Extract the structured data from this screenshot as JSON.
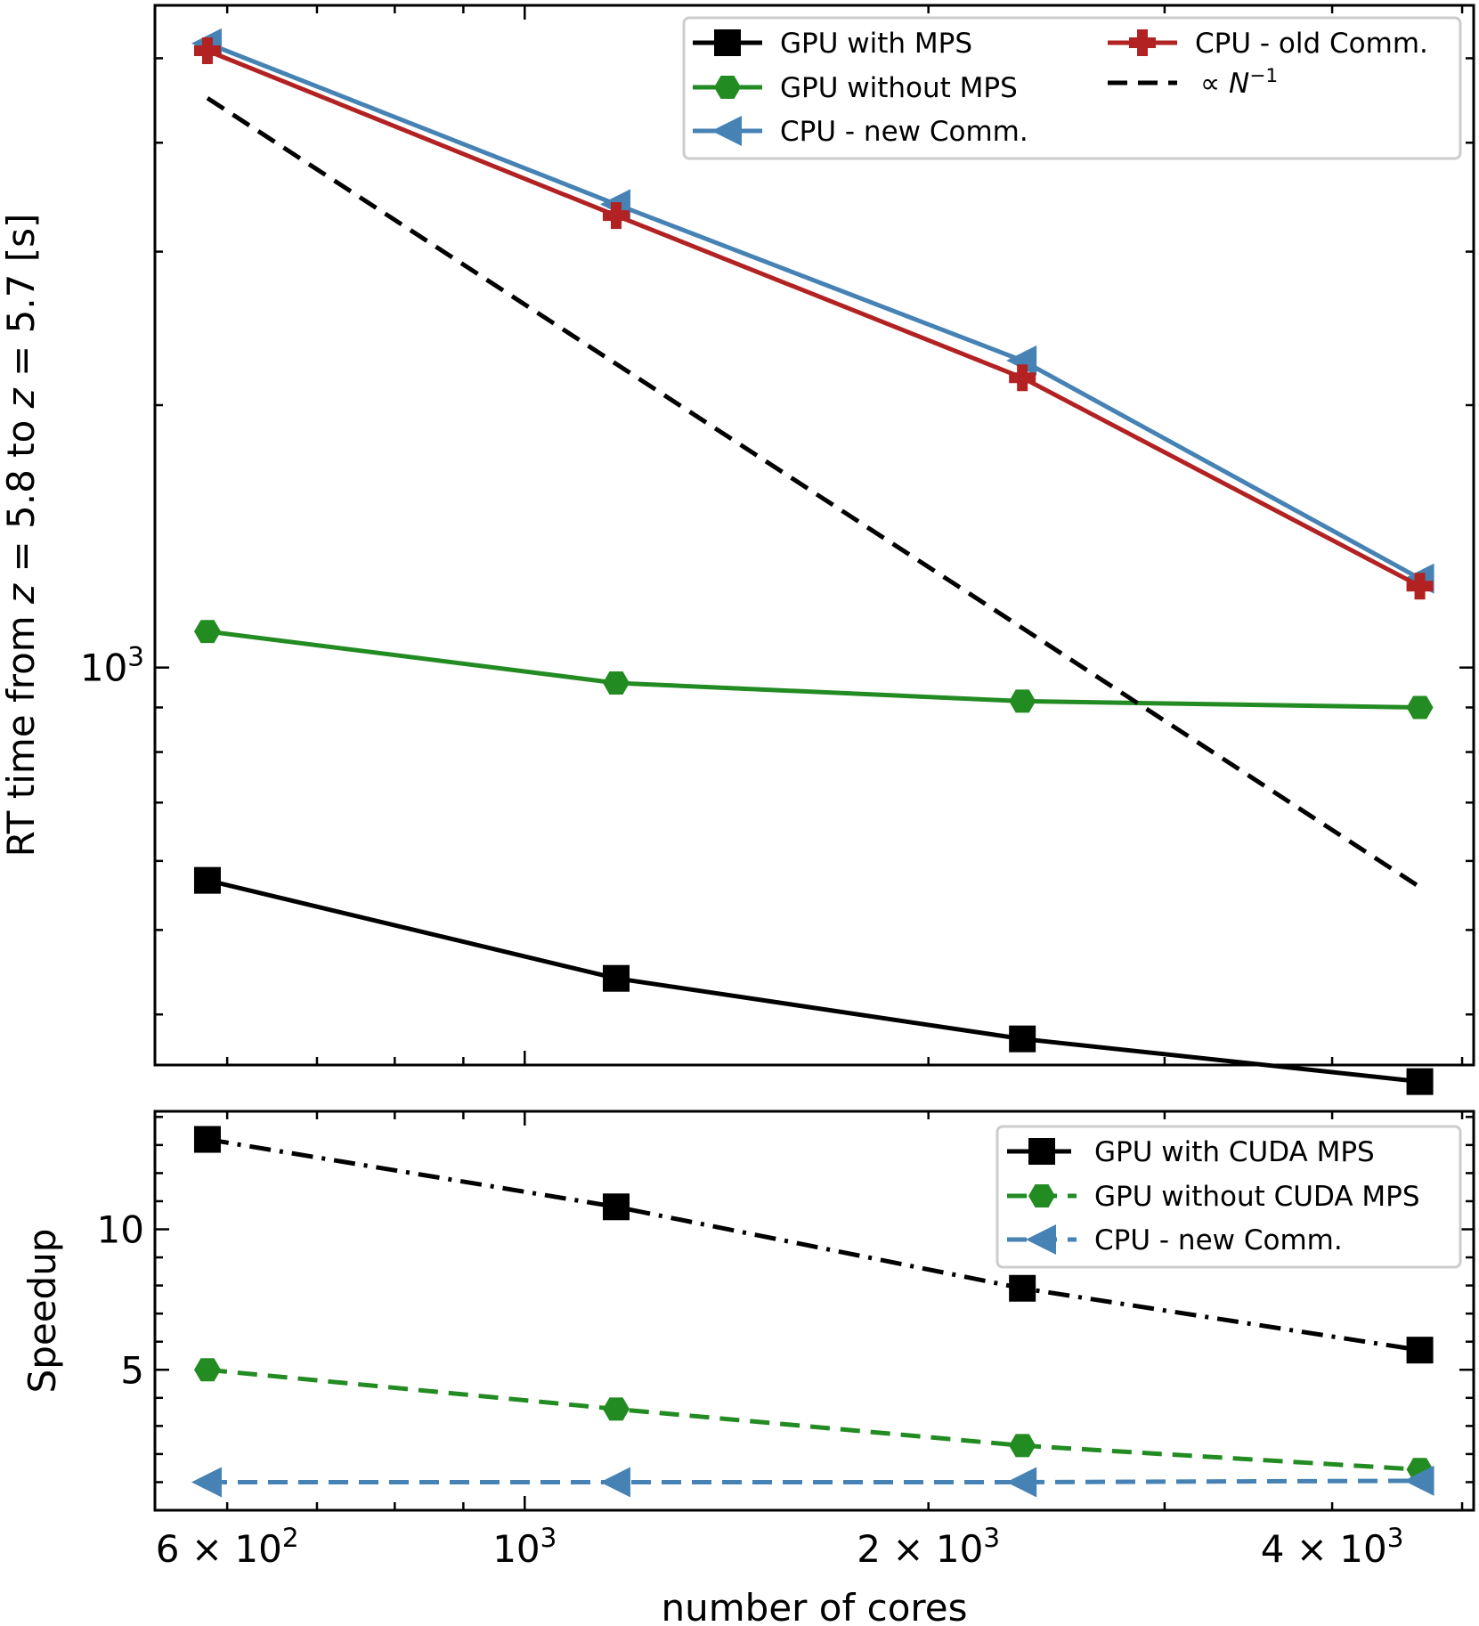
{
  "chart_data": [
    {
      "type": "line",
      "panel": "top",
      "xscale": "log",
      "yscale": "log",
      "ylabel": "RT time from z = 5.8 to z = 5.7 [s]",
      "ylabel_parts": [
        "RT time from ",
        "z",
        " = 5.8 to ",
        "z",
        " = 5.7 [s]"
      ],
      "xlim": [
        530,
        5100
      ],
      "ylim": [
        350,
        5750
      ],
      "y_tick_labels": [
        {
          "value": 1000,
          "base": "10",
          "exp": "3"
        }
      ],
      "x": [
        580,
        1170,
        2350,
        4650
      ],
      "series": [
        {
          "name": "GPU with MPS",
          "values": [
            570,
            440,
            375,
            335
          ],
          "color": "#000000",
          "linestyle": "solid",
          "marker": "square"
        },
        {
          "name": "GPU without MPS",
          "values": [
            1100,
            960,
            915,
            900
          ],
          "color": "#228b22",
          "linestyle": "solid",
          "marker": "hexagon"
        },
        {
          "name": "CPU - new Comm.",
          "values": [
            5200,
            3400,
            2250,
            1265
          ],
          "color": "#4682b4",
          "linestyle": "solid",
          "marker": "triangle-left"
        },
        {
          "name": "CPU - old Comm.",
          "values": [
            5100,
            3300,
            2150,
            1240
          ],
          "color": "#b22222",
          "linestyle": "solid",
          "marker": "plus"
        },
        {
          "name": "∝ N⁻¹",
          "values": [
            4500,
            2230,
            1110,
            560
          ],
          "color": "#000000",
          "linestyle": "dashed",
          "marker": "none"
        }
      ],
      "legend": {
        "location": "top-right",
        "entries": [
          {
            "label": "GPU with MPS"
          },
          {
            "label": "GPU without MPS"
          },
          {
            "label": "CPU - new Comm."
          },
          {
            "label": "CPU - old Comm."
          },
          {
            "label_prefix": "∝ ",
            "label_var": "N",
            "label_exp": "−1"
          }
        ]
      }
    },
    {
      "type": "line",
      "panel": "bottom",
      "xscale": "log",
      "yscale": "linear",
      "xlabel": "number of cores",
      "ylabel": "Speedup",
      "xlim": [
        530,
        5100
      ],
      "ylim": [
        0,
        14.2
      ],
      "y_tick_labels": [
        {
          "value": 5,
          "label": "5"
        },
        {
          "value": 10,
          "label": "10"
        }
      ],
      "x_tick_labels": [
        {
          "value": 600,
          "label": "6 × 10",
          "exp": "2"
        },
        {
          "value": 1000,
          "label": "10",
          "exp": "3"
        },
        {
          "value": 2000,
          "label": "2 × 10",
          "exp": "3"
        },
        {
          "value": 4000,
          "label": "4 × 10",
          "exp": "3"
        }
      ],
      "x": [
        580,
        1170,
        2350,
        4650
      ],
      "series": [
        {
          "name": "GPU with CUDA MPS",
          "values": [
            13.2,
            10.8,
            7.9,
            5.7
          ],
          "color": "#000000",
          "linestyle": "dashdot",
          "marker": "square"
        },
        {
          "name": "GPU without CUDA MPS",
          "values": [
            5.0,
            3.6,
            2.3,
            1.45
          ],
          "color": "#228b22",
          "linestyle": "dashed",
          "marker": "hexagon"
        },
        {
          "name": "CPU - new Comm.",
          "values": [
            1.0,
            1.0,
            1.0,
            1.05
          ],
          "color": "#4682b4",
          "linestyle": "dashed",
          "marker": "triangle-left"
        }
      ],
      "legend": {
        "location": "top-right",
        "entries": [
          {
            "label": "GPU with CUDA MPS"
          },
          {
            "label": "GPU without CUDA MPS"
          },
          {
            "label": "CPU - new Comm."
          }
        ]
      }
    }
  ]
}
